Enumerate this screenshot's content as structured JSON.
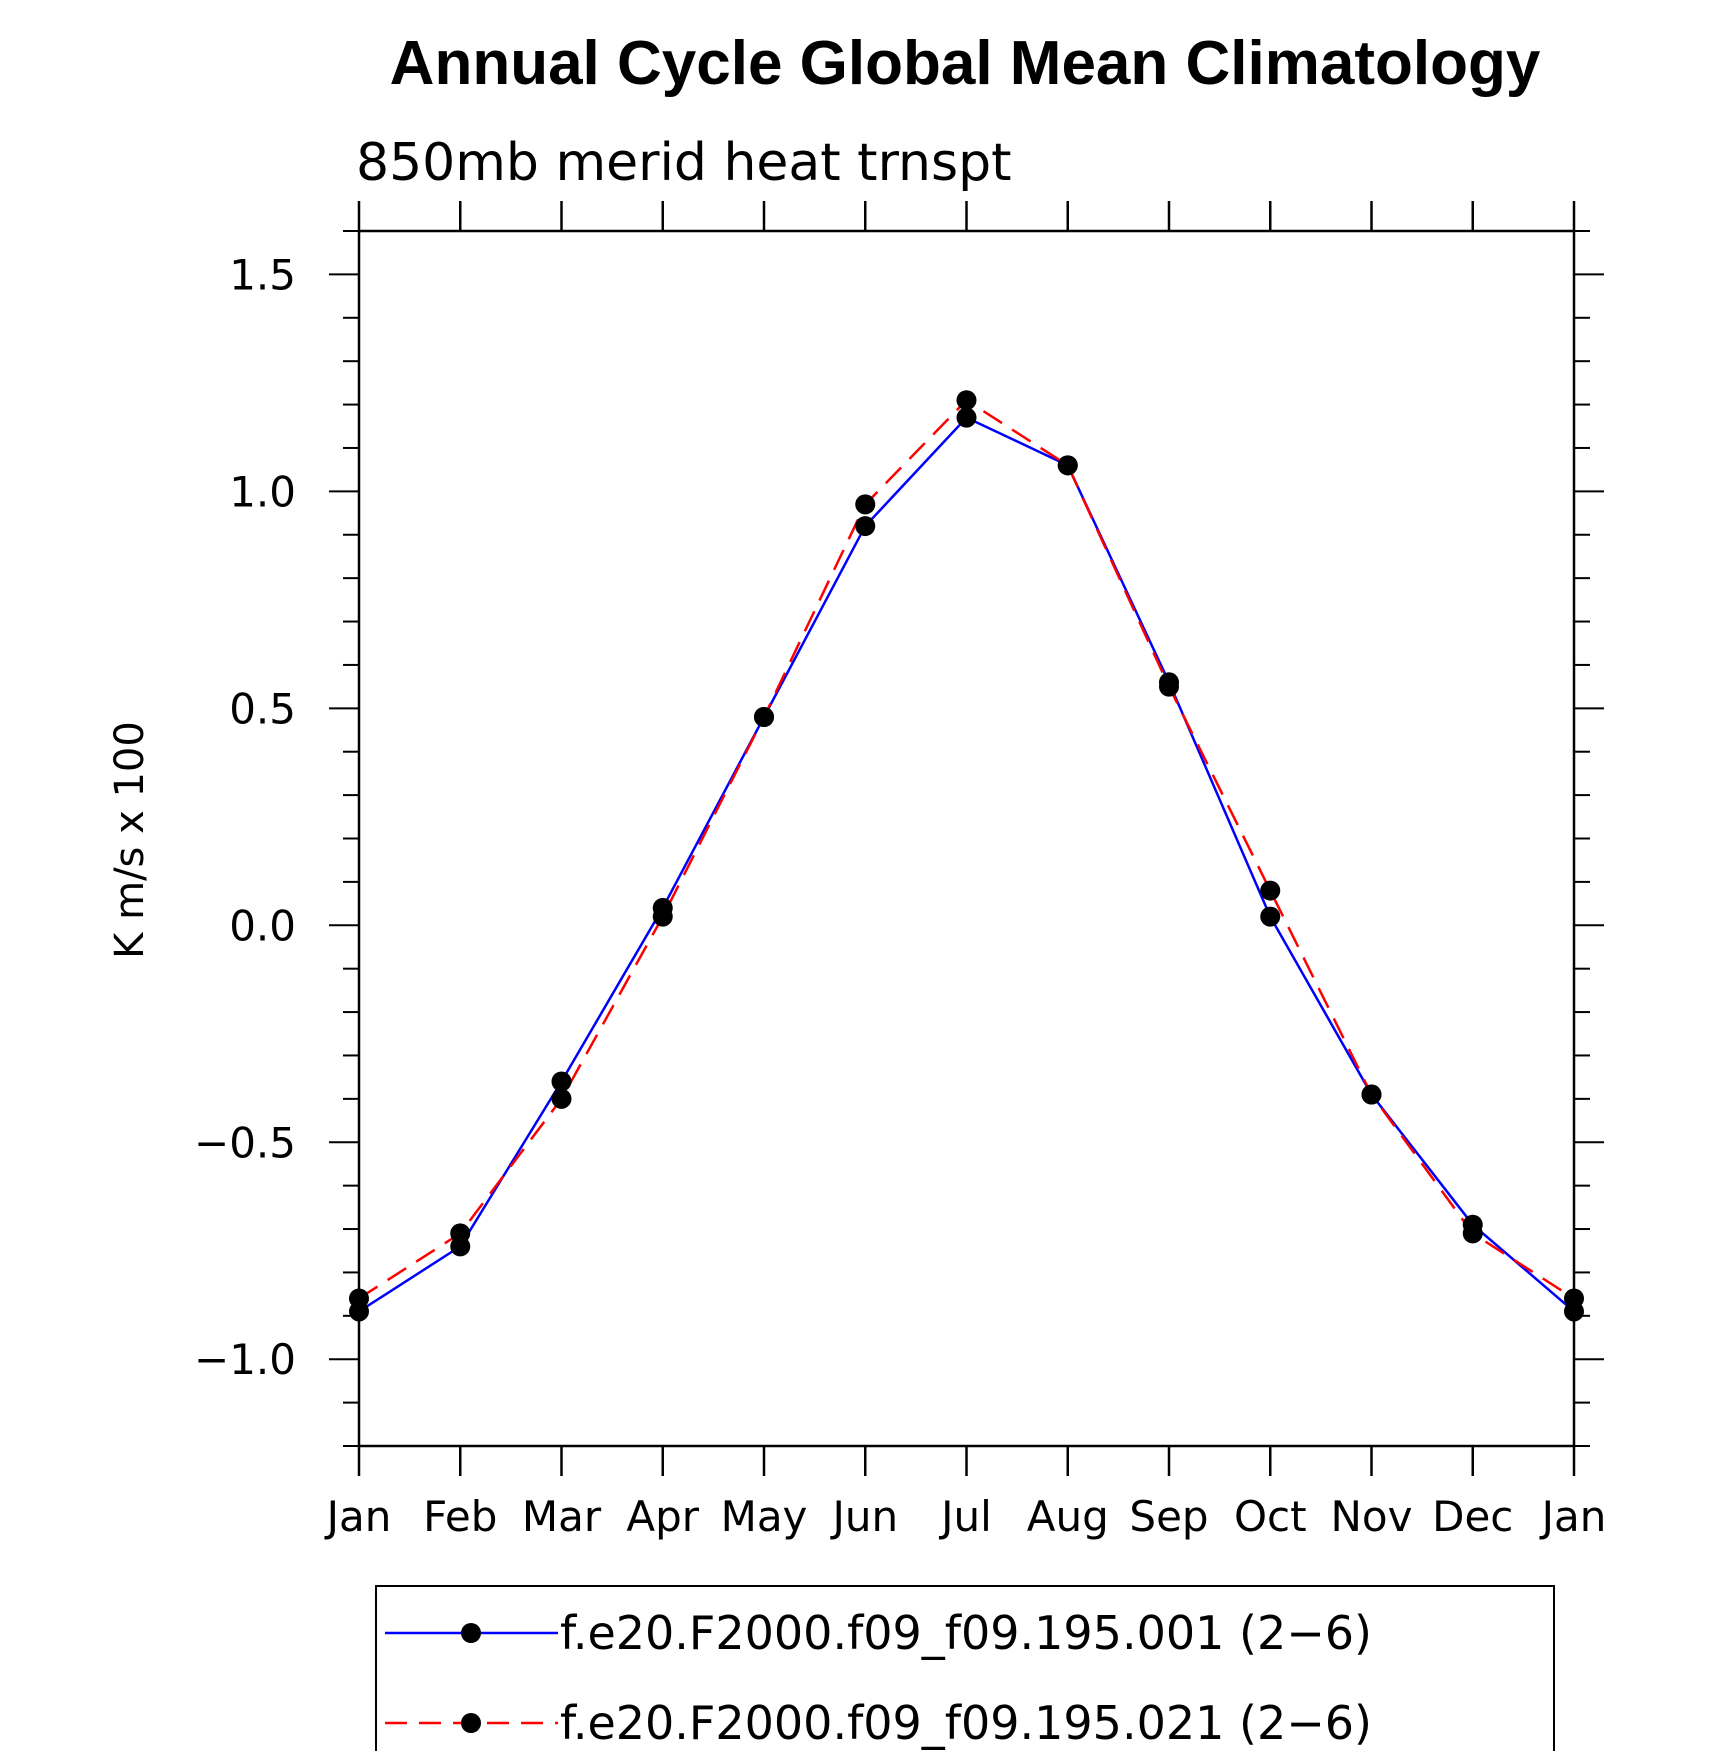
{
  "chart_data": {
    "type": "line",
    "title": "Annual Cycle Global Mean Climatology",
    "subtitle": "850mb merid heat trnspt",
    "ylabel": "K m/s x 100",
    "xlabel": "",
    "categories": [
      "Jan",
      "Feb",
      "Mar",
      "Apr",
      "May",
      "Jun",
      "Jul",
      "Aug",
      "Sep",
      "Oct",
      "Nov",
      "Dec",
      "Jan"
    ],
    "ylim": [
      -1.2,
      1.6
    ],
    "yticks": [
      -1.0,
      -0.5,
      0.0,
      0.5,
      1.0,
      1.5
    ],
    "ytick_labels": [
      "−1.0",
      "−0.5",
      "0.0",
      "0.5",
      "1.0",
      "1.5"
    ],
    "grid": false,
    "legend_position": "bottom",
    "series": [
      {
        "name": "f.e20.F2000.f09_f09.195.001 (2−6)",
        "color": "#0000ff",
        "dash": "solid",
        "marker": "filled-circle",
        "values": [
          -0.89,
          -0.74,
          -0.36,
          0.04,
          0.48,
          0.92,
          1.17,
          1.06,
          0.56,
          0.02,
          -0.39,
          -0.69,
          -0.89
        ]
      },
      {
        "name": "f.e20.F2000.f09_f09.195.021 (2−6)",
        "color": "#ff0000",
        "dash": "dashed",
        "marker": "filled-circle",
        "values": [
          -0.86,
          -0.71,
          -0.4,
          0.02,
          0.48,
          0.97,
          1.21,
          1.06,
          0.55,
          0.08,
          -0.39,
          -0.71,
          -0.86
        ]
      }
    ]
  }
}
